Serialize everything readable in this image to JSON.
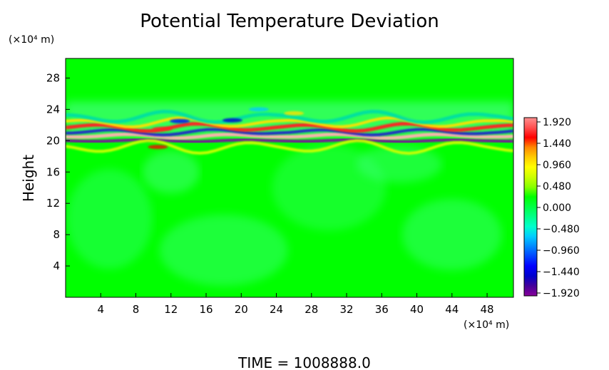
{
  "chart_data": {
    "type": "heatmap",
    "title": "Potential Temperature Deviation",
    "ylabel": "Height",
    "y_unit": "(×10⁴ m)",
    "x_unit": "(×10⁴ m)",
    "xticks": [
      "4",
      "8",
      "12",
      "16",
      "20",
      "24",
      "28",
      "32",
      "36",
      "40",
      "44",
      "48"
    ],
    "yticks": [
      "4",
      "8",
      "12",
      "16",
      "20",
      "24",
      "28"
    ],
    "x_tick_values": [
      4,
      8,
      12,
      16,
      20,
      24,
      28,
      32,
      36,
      40,
      44,
      48
    ],
    "y_tick_values": [
      4,
      8,
      12,
      16,
      20,
      24,
      28
    ],
    "xlim": [
      0,
      51
    ],
    "ylim": [
      0,
      30.5
    ],
    "colorbar": {
      "labels": [
        "1.920",
        "1.440",
        "0.960",
        "0.480",
        "0.000",
        "−0.480",
        "−0.960",
        "−1.440",
        "−1.920"
      ],
      "values": [
        1.92,
        1.44,
        0.96,
        0.48,
        0.0,
        -0.48,
        -0.96,
        -1.44,
        -1.92
      ],
      "colors": [
        "#ff9090",
        "#ff5050",
        "#ff0000",
        "#ff8800",
        "#ffcc00",
        "#ffff00",
        "#ccff00",
        "#88ff00",
        "#00ff00",
        "#00ff44",
        "#00ff88",
        "#00ffcc",
        "#00ccff",
        "#0088ff",
        "#0044ff",
        "#0000ff",
        "#0000cc",
        "#440099",
        "#880099"
      ]
    },
    "background_value_color": "#00ff00",
    "layers": [
      {
        "y": 20.0,
        "value": -1.92,
        "color": "#7a0a9a"
      },
      {
        "y": 20.6,
        "value": 1.92,
        "color": "#ffb0b0"
      },
      {
        "y": 21.1,
        "value": -1.44,
        "color": "#2020cc"
      },
      {
        "y": 21.7,
        "value": 0.96,
        "color": "#ff2020"
      },
      {
        "y": 22.3,
        "value": 0.48,
        "color": "#ffe000"
      },
      {
        "y": 23.0,
        "value": -0.48,
        "color": "#00e0a0"
      },
      {
        "y": 19.2,
        "value": 0.48,
        "color": "#ccff00"
      }
    ],
    "footer": "TIME = 1008888.0"
  }
}
